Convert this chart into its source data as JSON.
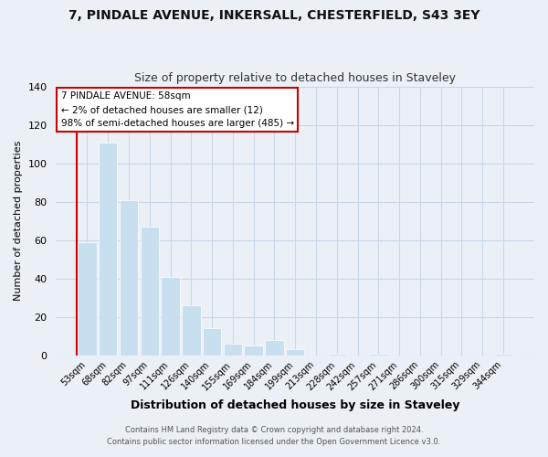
{
  "title": "7, PINDALE AVENUE, INKERSALL, CHESTERFIELD, S43 3EY",
  "subtitle": "Size of property relative to detached houses in Staveley",
  "xlabel": "Distribution of detached houses by size in Staveley",
  "ylabel": "Number of detached properties",
  "bin_labels": [
    "53sqm",
    "68sqm",
    "82sqm",
    "97sqm",
    "111sqm",
    "126sqm",
    "140sqm",
    "155sqm",
    "169sqm",
    "184sqm",
    "199sqm",
    "213sqm",
    "228sqm",
    "242sqm",
    "257sqm",
    "271sqm",
    "286sqm",
    "300sqm",
    "315sqm",
    "329sqm",
    "344sqm"
  ],
  "bar_heights": [
    59,
    111,
    81,
    67,
    41,
    26,
    14,
    6,
    5,
    8,
    3,
    0,
    1,
    0,
    1,
    0,
    0,
    0,
    0,
    0,
    1
  ],
  "bar_color": "#c8dff0",
  "highlight_line_color": "#cc0000",
  "ylim": [
    0,
    140
  ],
  "yticks": [
    0,
    20,
    40,
    60,
    80,
    100,
    120,
    140
  ],
  "annotation_title": "7 PINDALE AVENUE: 58sqm",
  "annotation_line1": "← 2% of detached houses are smaller (12)",
  "annotation_line2": "98% of semi-detached houses are larger (485) →",
  "annotation_box_color": "#ffffff",
  "annotation_box_edge": "#cc0000",
  "footer_line1": "Contains HM Land Registry data © Crown copyright and database right 2024.",
  "footer_line2": "Contains public sector information licensed under the Open Government Licence v3.0.",
  "background_color": "#eaf0f6",
  "plot_background_color": "#eaf0f6",
  "grid_color": "#c8d8e8"
}
